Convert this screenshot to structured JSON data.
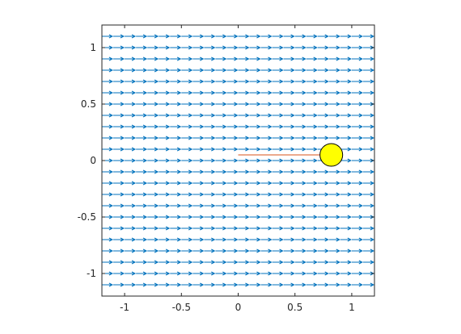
{
  "chart_data": {
    "type": "quiver",
    "title": "",
    "xlabel": "",
    "ylabel": "",
    "xlim": [
      -1.2,
      1.2
    ],
    "ylim": [
      -1.2,
      1.2
    ],
    "xticks": [
      -1,
      -0.5,
      0,
      0.5,
      1
    ],
    "xtick_labels": [
      "-1",
      "-0.5",
      "0",
      "0.5",
      "1"
    ],
    "yticks": [
      -1,
      -0.5,
      0,
      0.5,
      1
    ],
    "ytick_labels": [
      "-1",
      "-0.5",
      "0",
      "0.5",
      "1"
    ],
    "grid": false,
    "vector_field": {
      "x_range": [
        -1.2,
        1.2
      ],
      "y_range": [
        -1.1,
        1.1
      ],
      "spacing": 0.1,
      "u": 1,
      "v": 0,
      "color": "#0072BD"
    },
    "trail": {
      "x": [
        0,
        0.72
      ],
      "y": [
        0.05,
        0.05
      ],
      "color": "#D95319"
    },
    "ball": {
      "center": [
        0.82,
        0.05
      ],
      "radius": 0.1,
      "fill": "#FFFF00",
      "edge": "#000000"
    }
  }
}
